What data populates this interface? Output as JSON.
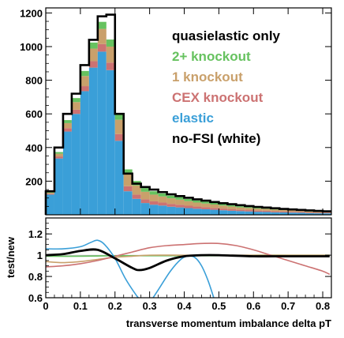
{
  "chart_data": [
    {
      "panel": "top",
      "type": "bar",
      "stacked": true,
      "x_bin_width": 0.025,
      "xlim": [
        0,
        0.825
      ],
      "ylim": [
        0,
        1230
      ],
      "yticks": [
        200,
        400,
        600,
        800,
        1000,
        1200
      ],
      "x_bin_starts": [
        0,
        0.025,
        0.05,
        0.075,
        0.1,
        0.125,
        0.15,
        0.175,
        0.2,
        0.225,
        0.25,
        0.275,
        0.3,
        0.325,
        0.35,
        0.375,
        0.4,
        0.425,
        0.45,
        0.475,
        0.5,
        0.525,
        0.55,
        0.575,
        0.6,
        0.625,
        0.65,
        0.675,
        0.7,
        0.725,
        0.75,
        0.775,
        0.8
      ],
      "series": [
        {
          "name": "elastic",
          "color": "#3a9fd8",
          "values": [
            120,
            335,
            495,
            600,
            735,
            875,
            970,
            860,
            440,
            140,
            95,
            70,
            60,
            55,
            48,
            44,
            40,
            36,
            33,
            30,
            27,
            24,
            22,
            20,
            18,
            17,
            15,
            14,
            13,
            12,
            10,
            9,
            9
          ]
        },
        {
          "name": "CEX knockout",
          "color": "#cc7272",
          "values": [
            5,
            12,
            20,
            25,
            30,
            38,
            45,
            45,
            40,
            30,
            25,
            22,
            20,
            18,
            17,
            16,
            14,
            13,
            12,
            11,
            10,
            9,
            8,
            8,
            7,
            7,
            6,
            6,
            5,
            5,
            4,
            4,
            4
          ]
        },
        {
          "name": "1 knockout",
          "color": "#c9a06b",
          "values": [
            6,
            16,
            30,
            45,
            60,
            75,
            90,
            95,
            85,
            70,
            55,
            45,
            40,
            36,
            33,
            30,
            27,
            24,
            22,
            20,
            18,
            16,
            14,
            13,
            12,
            11,
            10,
            9,
            8,
            7,
            6,
            5,
            5
          ]
        },
        {
          "name": "2+ knockout",
          "color": "#66c25f",
          "values": [
            4,
            10,
            18,
            24,
            30,
            36,
            42,
            42,
            38,
            30,
            26,
            22,
            20,
            18,
            16,
            15,
            13,
            12,
            11,
            10,
            9,
            8,
            7,
            7,
            6,
            6,
            5,
            5,
            4,
            4,
            4,
            3,
            3
          ]
        }
      ],
      "total_quasielastic": [
        140,
        400,
        600,
        720,
        890,
        1040,
        1180,
        1190,
        600,
        245,
        185,
        165,
        150,
        135,
        122,
        111,
        101,
        92,
        84,
        76,
        69,
        63,
        57,
        52,
        47,
        43,
        39,
        35,
        32,
        29,
        26,
        23,
        21
      ],
      "no_fsi_white": [
        140,
        400,
        600,
        720,
        890,
        1040,
        1180,
        1190,
        600,
        245,
        185,
        165,
        150,
        135,
        122,
        111,
        101,
        92,
        84,
        76,
        69,
        63,
        57,
        52,
        47,
        43,
        39,
        35,
        32,
        29,
        26,
        23,
        21
      ],
      "legend": [
        {
          "label": "quasielastic only",
          "color": "#000000"
        },
        {
          "label": "2+ knockout",
          "color": "#66c25f"
        },
        {
          "label": "1 knockout",
          "color": "#c9a06b"
        },
        {
          "label": "CEX knockout",
          "color": "#cc7272"
        },
        {
          "label": "elastic",
          "color": "#3a9fd8"
        },
        {
          "label": "no-FSI (white)",
          "color": "#000000"
        }
      ],
      "legend_position": "top-right"
    },
    {
      "panel": "bottom",
      "type": "line",
      "ylabel": "test/new",
      "xlabel": "transverse momentum imbalance delta pT",
      "xlim": [
        0,
        0.825
      ],
      "ylim": [
        0.6,
        1.35
      ],
      "yticks": [
        0.6,
        0.8,
        1,
        1.2
      ],
      "xticks": [
        0,
        0.1,
        0.2,
        0.3,
        0.4,
        0.5,
        0.6,
        0.7,
        0.8
      ],
      "reference_line": 1,
      "series": [
        {
          "name": "quasielastic only",
          "color": "#000000",
          "width": 2.8,
          "x": [
            0,
            0.05,
            0.1,
            0.15,
            0.2,
            0.25,
            0.27,
            0.3,
            0.35,
            0.4,
            0.45,
            0.5,
            0.6,
            0.7,
            0.8,
            0.82
          ],
          "y": [
            1.0,
            1.01,
            1.04,
            1.05,
            0.97,
            0.88,
            0.86,
            0.88,
            0.95,
            0.99,
            1.0,
            1.0,
            0.99,
            0.99,
            0.99,
            0.99
          ]
        },
        {
          "name": "2+ knockout",
          "color": "#66c25f",
          "width": 1.6,
          "x": [
            0,
            0.1,
            0.2,
            0.3,
            0.4,
            0.5,
            0.6,
            0.7,
            0.82
          ],
          "y": [
            0.99,
            0.99,
            0.995,
            0.995,
            0.995,
            0.995,
            1.0,
            1.0,
            1.0
          ]
        },
        {
          "name": "1 knockout",
          "color": "#c9a06b",
          "width": 1.6,
          "x": [
            0,
            0.05,
            0.1,
            0.15,
            0.2,
            0.25,
            0.3,
            0.4,
            0.5,
            0.6,
            0.7,
            0.82
          ],
          "y": [
            0.94,
            0.93,
            0.94,
            0.96,
            0.98,
            0.99,
            1.0,
            1.0,
            1.0,
            1.0,
            1.0,
            1.0
          ]
        },
        {
          "name": "CEX knockout",
          "color": "#cc7272",
          "width": 1.6,
          "x": [
            0,
            0.05,
            0.1,
            0.15,
            0.2,
            0.25,
            0.3,
            0.35,
            0.4,
            0.45,
            0.5,
            0.55,
            0.6,
            0.65,
            0.7,
            0.75,
            0.8,
            0.82
          ],
          "y": [
            0.89,
            0.9,
            0.92,
            0.95,
            0.99,
            1.03,
            1.07,
            1.09,
            1.1,
            1.11,
            1.11,
            1.09,
            1.05,
            1.0,
            0.95,
            0.9,
            0.85,
            0.82
          ]
        },
        {
          "name": "elastic",
          "color": "#3a9fd8",
          "width": 1.6,
          "segments": [
            {
              "x": [
                0,
                0.05,
                0.1,
                0.13,
                0.15,
                0.17,
                0.2,
                0.23,
                0.26,
                0.28
              ],
              "y": [
                1.06,
                1.06,
                1.08,
                1.12,
                1.14,
                1.1,
                0.97,
                0.78,
                0.63,
                0.55
              ]
            },
            {
              "x": [
                0.3,
                0.33,
                0.36,
                0.39,
                0.41,
                0.43,
                0.45,
                0.47,
                0.49
              ],
              "y": [
                0.55,
                0.7,
                0.85,
                0.96,
                0.99,
                0.98,
                0.9,
                0.75,
                0.55
              ]
            }
          ]
        }
      ]
    }
  ]
}
